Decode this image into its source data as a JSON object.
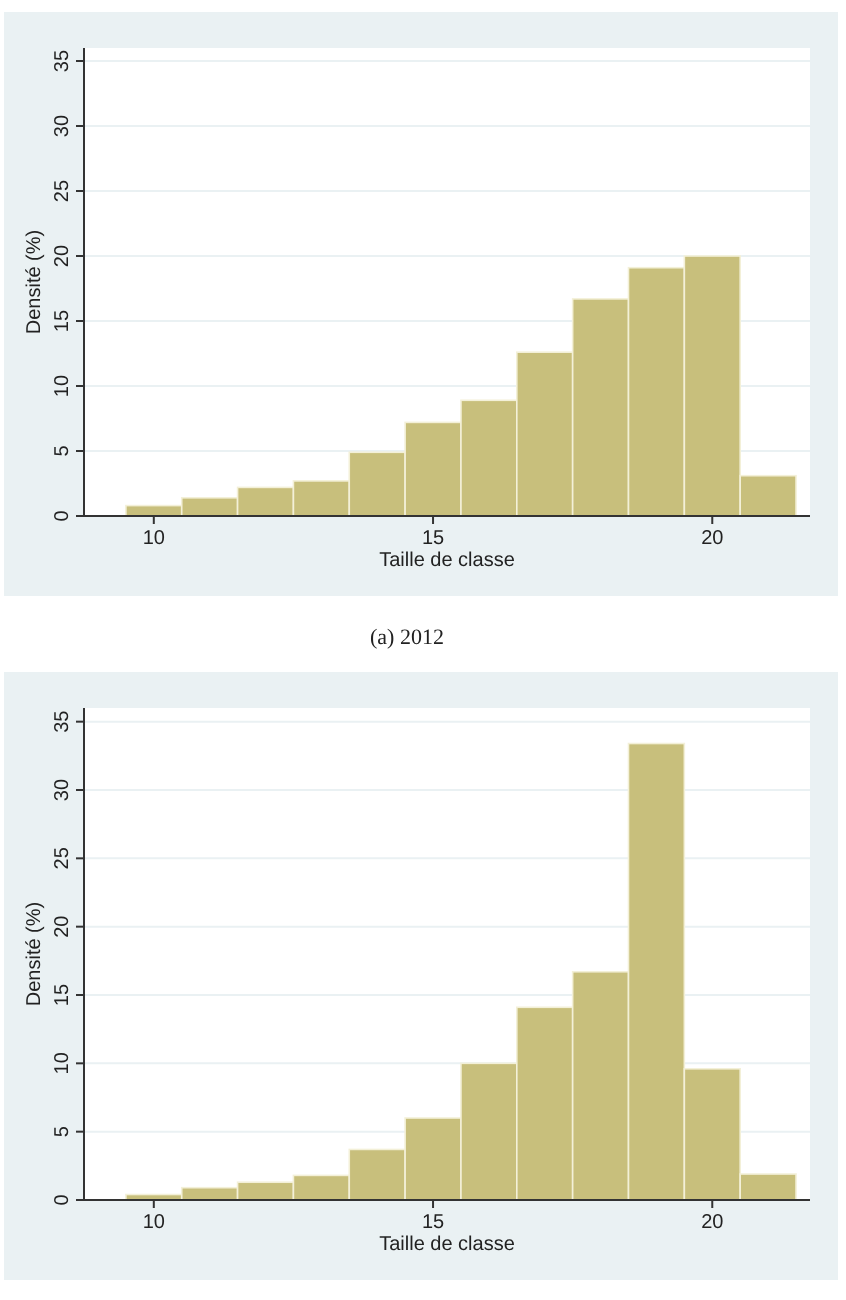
{
  "chart_data": [
    {
      "type": "histogram",
      "xlabel": "Taille de classe",
      "ylabel": "Densité (%)",
      "annotations": [
        "(a) 2012"
      ],
      "bins": [
        9.5,
        10.5,
        11.5,
        12.5,
        13.5,
        14.5,
        15.5,
        16.5,
        17.5,
        18.5,
        19.5,
        20.5,
        21.5
      ],
      "values": [
        0.8,
        1.4,
        2.2,
        2.7,
        4.9,
        7.2,
        8.9,
        12.6,
        16.7,
        19.1,
        20.0,
        3.1
      ],
      "color": "#c8bf7c",
      "xlim": [
        8.75,
        21.75
      ],
      "xticks": [
        10,
        15,
        20
      ],
      "ylim": [
        0,
        36
      ],
      "yticks": [
        0,
        5,
        10,
        15,
        20,
        25,
        30,
        35
      ],
      "grid": "y"
    },
    {
      "type": "histogram",
      "xlabel": "Taille de classe",
      "ylabel": "Densité (%)",
      "bins": [
        9.5,
        10.5,
        11.5,
        12.5,
        13.5,
        14.5,
        15.5,
        16.5,
        17.5,
        18.5,
        19.5,
        20.5,
        21.5
      ],
      "values": [
        0.4,
        0.9,
        1.3,
        1.8,
        3.7,
        6.0,
        10.0,
        14.1,
        16.7,
        33.4,
        9.6,
        1.9
      ],
      "color": "#c8bf7c",
      "xlim": [
        8.75,
        21.75
      ],
      "xticks": [
        10,
        15,
        20
      ],
      "ylim": [
        0,
        36
      ],
      "yticks": [
        0,
        5,
        10,
        15,
        20,
        25,
        30,
        35
      ],
      "grid": "y"
    }
  ]
}
